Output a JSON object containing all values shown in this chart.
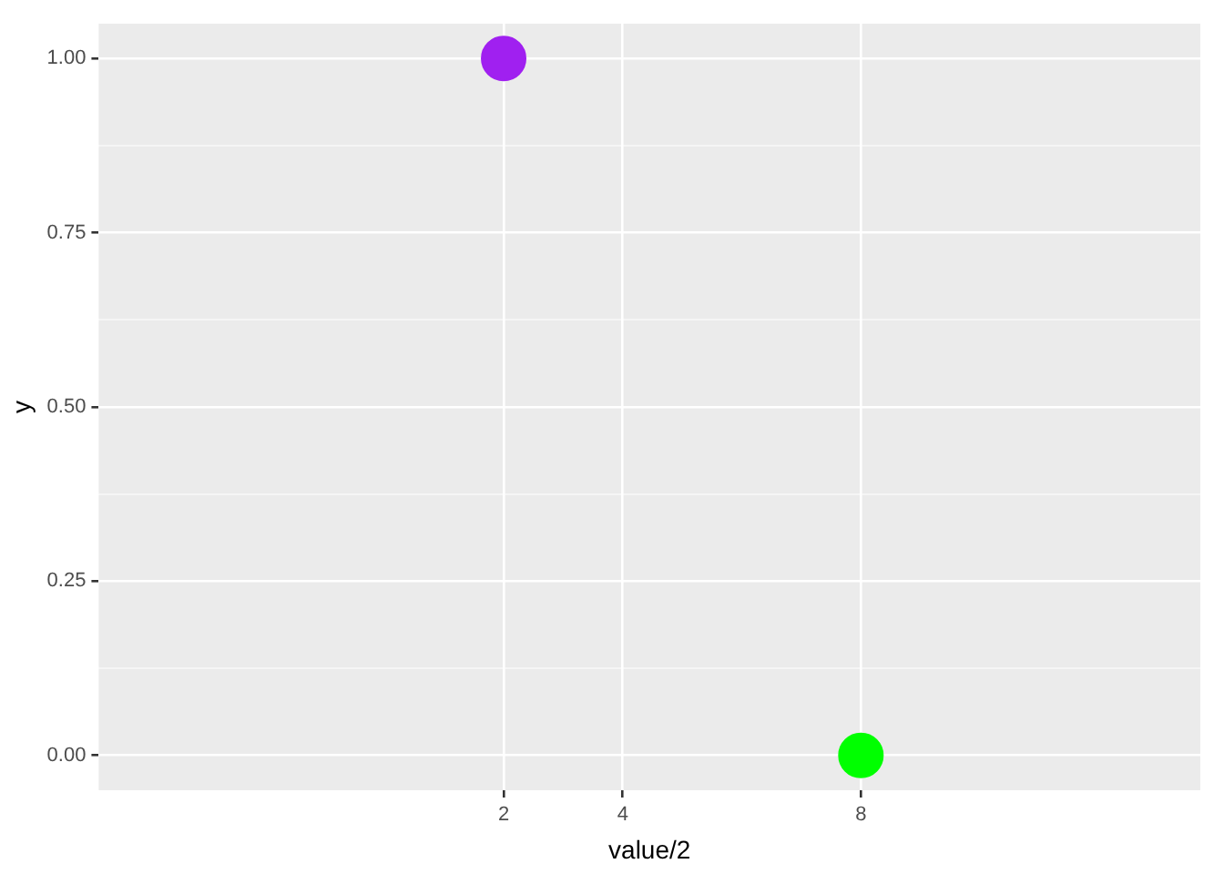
{
  "chart_data": {
    "type": "scatter",
    "xlabel": "value/2",
    "ylabel": "y",
    "x": [
      2,
      8
    ],
    "values": [
      1,
      0
    ],
    "colors": [
      "#a020f0",
      "#00ff00"
    ],
    "xlim": [
      -4.8,
      13.7
    ],
    "xticks": [
      2,
      4,
      8
    ],
    "ylim": [
      -0.05,
      1.05
    ],
    "yticks": [
      {
        "value": 0,
        "label": "0.00"
      },
      {
        "value": 0.125,
        "label": null
      },
      {
        "value": 0.25,
        "label": "0.25"
      },
      {
        "value": 0.375,
        "label": null
      },
      {
        "value": 0.5,
        "label": "0.50"
      },
      {
        "value": 0.625,
        "label": null
      },
      {
        "value": 0.75,
        "label": "0.75"
      },
      {
        "value": 0.875,
        "label": null
      },
      {
        "value": 1,
        "label": "1.00"
      }
    ],
    "grid": true,
    "legend": false,
    "marker": "circle"
  }
}
